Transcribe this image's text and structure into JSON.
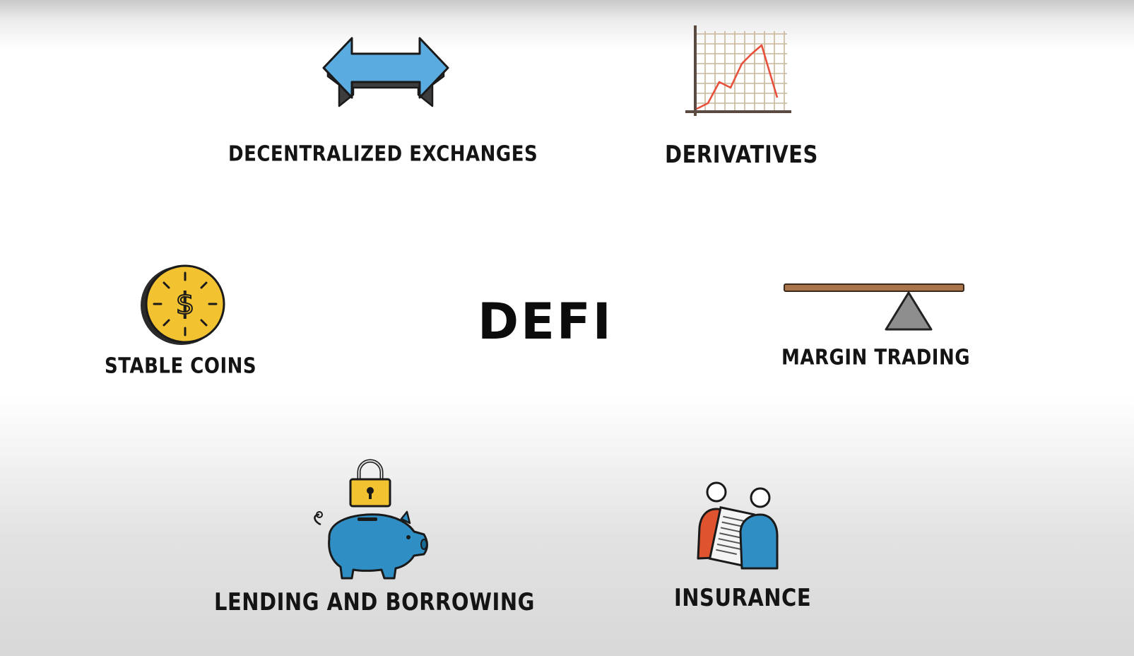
{
  "center": {
    "title": "DEFI"
  },
  "items": {
    "exchanges": {
      "label": "DECENTRALIZED EXCHANGES",
      "icon": "double-arrow-icon",
      "color": "#5aace0"
    },
    "derivatives": {
      "label": "DERIVATIVES",
      "icon": "line-chart-icon",
      "color": "#e8503c"
    },
    "stable_coins": {
      "label": "STABLE COINS",
      "icon": "dollar-coin-icon",
      "color": "#f2c230"
    },
    "margin_trading": {
      "label": "MARGIN TRADING",
      "icon": "seesaw-icon",
      "color": "#a9744a"
    },
    "lending": {
      "label": "LENDING AND BORROWING",
      "icon": "piggy-bank-icon",
      "color": "#2f8fc4"
    },
    "insurance": {
      "label": "INSURANCE",
      "icon": "people-document-icon",
      "color": "#e0532f"
    }
  }
}
